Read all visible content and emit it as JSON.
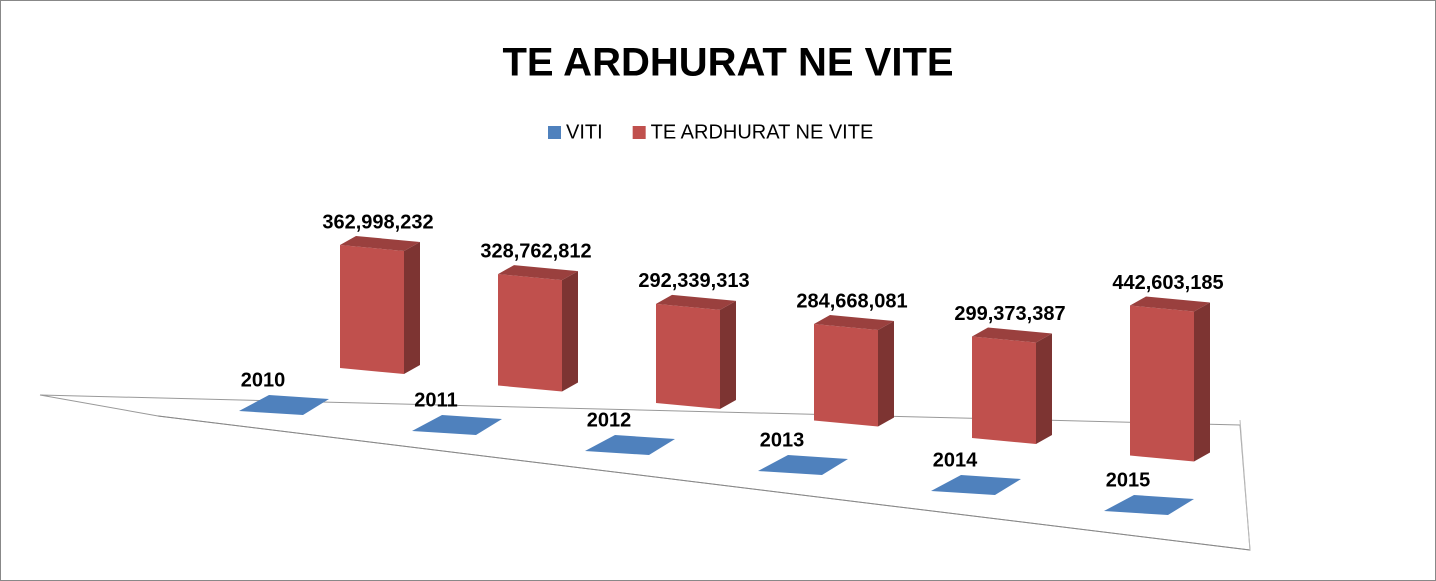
{
  "chart_data": {
    "type": "bar3d",
    "title": "TE ARDHURAT NE  VITE",
    "series": [
      {
        "name": "VITI",
        "color": "#4f81bd",
        "values": [
          2010,
          2011,
          2012,
          2013,
          2014,
          2015
        ]
      },
      {
        "name": "TE ARDHURAT NE  VITE",
        "color": "#c0504d",
        "values": [
          362998232,
          328762812,
          292339313,
          284668081,
          299373387,
          442603185
        ],
        "value_labels": [
          "362,998,232",
          "328,762,812",
          "292,339,313",
          "284,668,081",
          "299,373,387",
          "442,603,185"
        ]
      }
    ],
    "legend": "top"
  }
}
